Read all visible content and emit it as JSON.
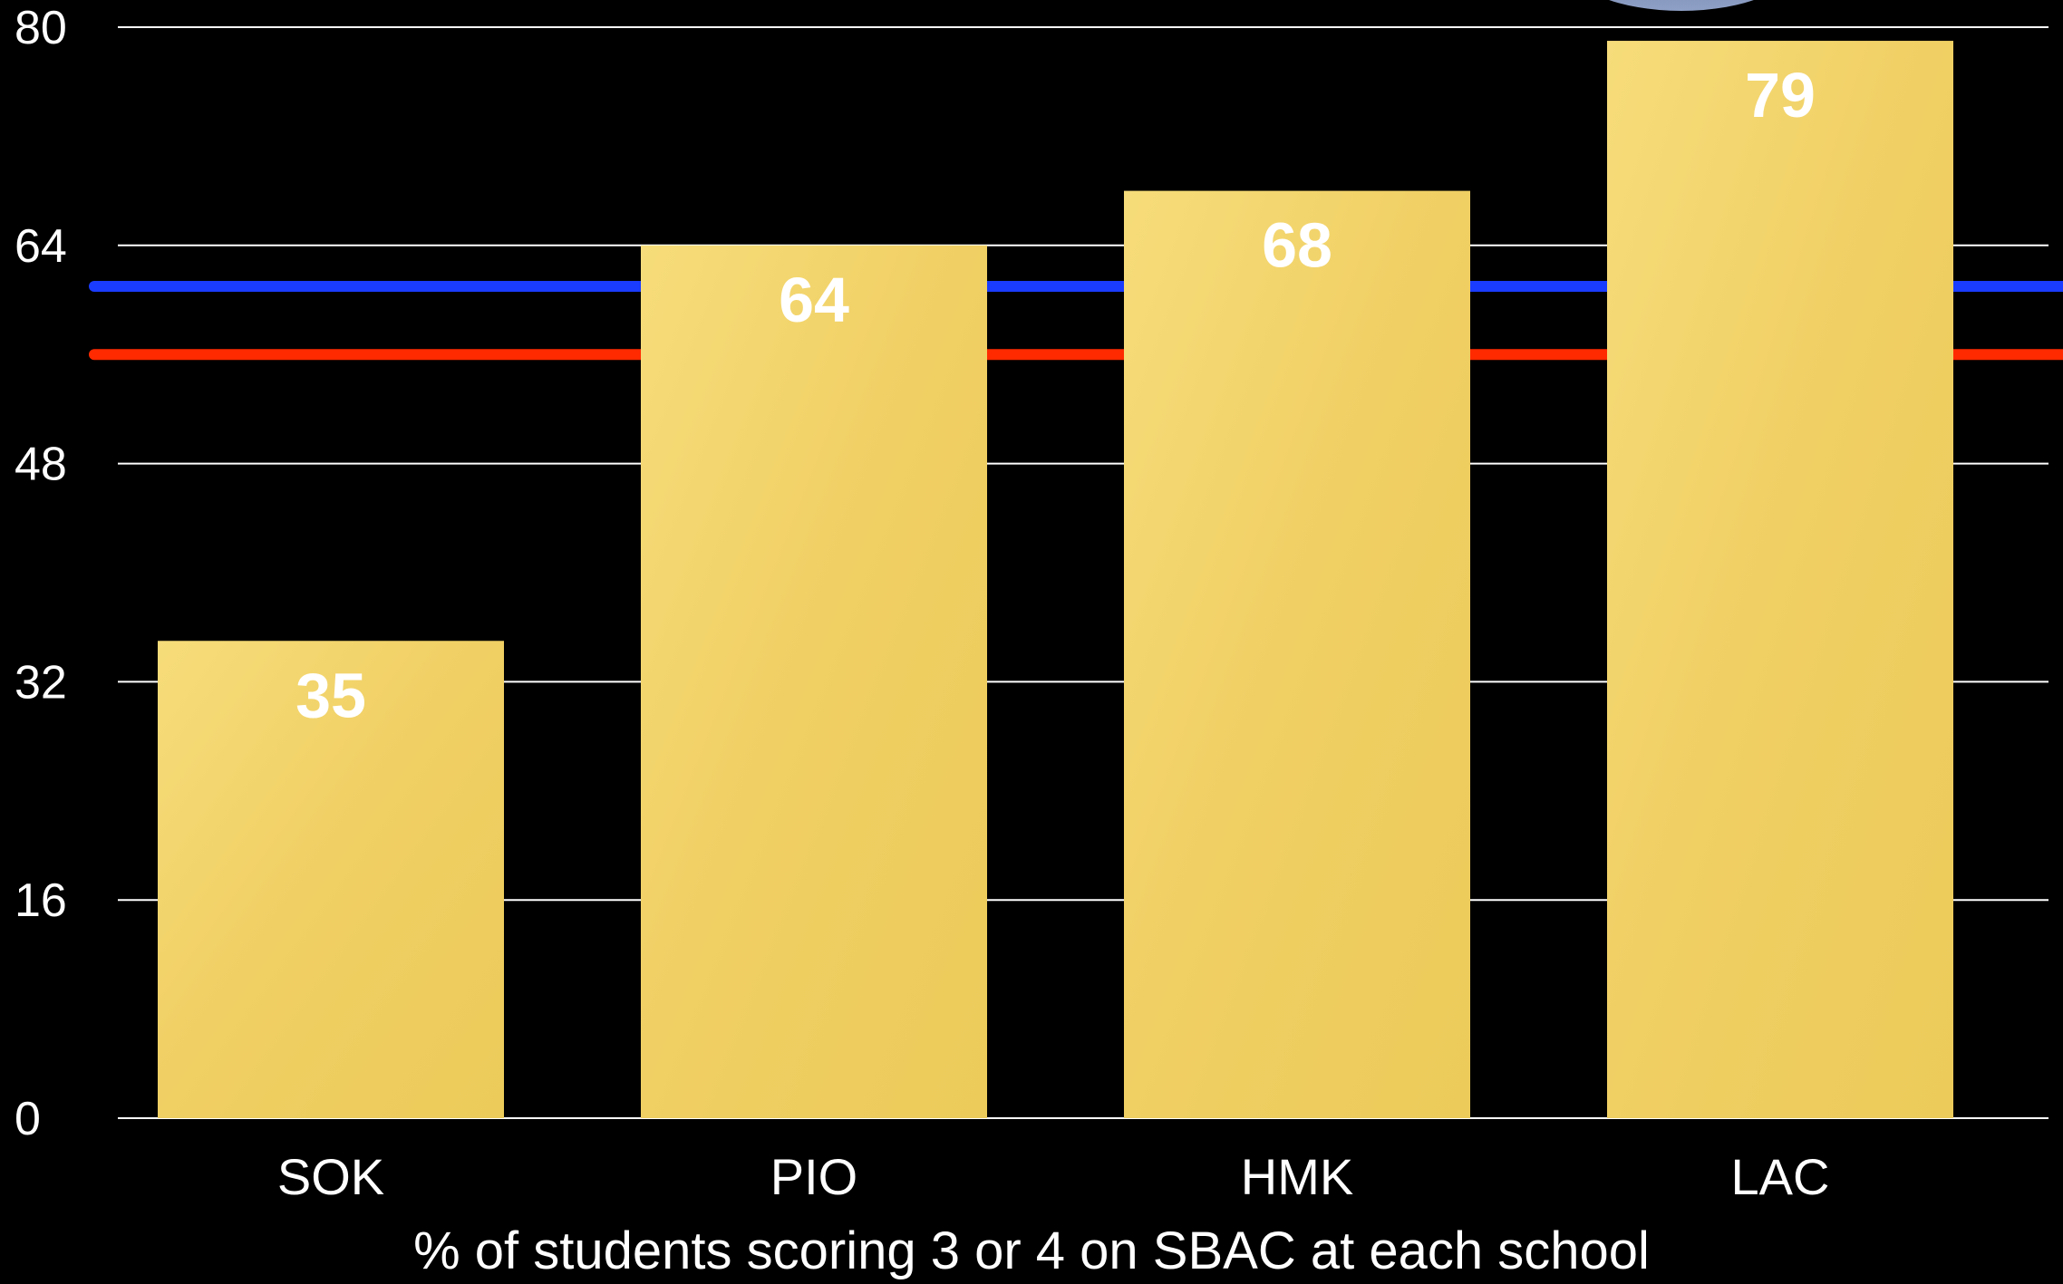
{
  "chart_data": {
    "type": "bar",
    "categories": [
      "SOK",
      "PIO",
      "HMK",
      "LAC"
    ],
    "values": [
      35,
      64,
      68,
      79
    ],
    "title": "",
    "xlabel": "% of students scoring 3 or 4 on SBAC at each school",
    "ylabel": "",
    "ylim": [
      0,
      80
    ],
    "yticks": [
      0,
      16,
      32,
      48,
      64,
      80
    ],
    "grid": true,
    "reference_lines": [
      {
        "value": 61,
        "color": "#1a3cff"
      },
      {
        "value": 56,
        "color": "#ff2a00"
      }
    ],
    "colors": {
      "background": "#000000",
      "bar": "#f0cf63",
      "grid": "#ffffff",
      "text": "#ffffff",
      "badge": "#7d8fb8"
    }
  }
}
